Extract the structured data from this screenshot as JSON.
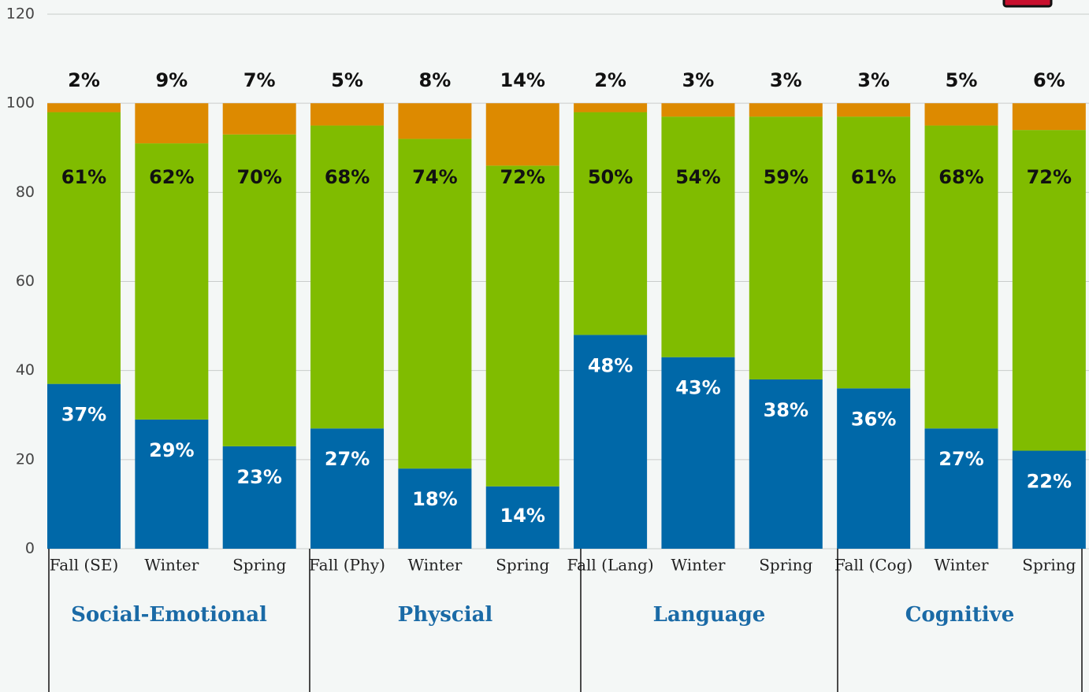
{
  "chart_data": {
    "type": "stacked_bar",
    "categories": [
      "Fall (SE)",
      "Winter",
      "Spring",
      "Fall (Phy)",
      "Winter",
      "Spring",
      "Fall (Lang)",
      "Winter",
      "Spring",
      "Fall (Cog)",
      "Winter",
      "Spring"
    ],
    "groups": [
      "Social-Emotional",
      "Physcial",
      "Language",
      "Cognitive"
    ],
    "series": [
      {
        "color": "#0068a8",
        "values": [
          37,
          29,
          23,
          27,
          18,
          14,
          48,
          43,
          38,
          36,
          27,
          22
        ],
        "value_labels": [
          "37%",
          "29%",
          "23%",
          "27%",
          "18%",
          "14%",
          "48%",
          "43%",
          "38%",
          "36%",
          "27%",
          "22%"
        ]
      },
      {
        "color": "#80bc00",
        "values": [
          61,
          62,
          70,
          68,
          74,
          72,
          50,
          54,
          59,
          61,
          68,
          72
        ],
        "value_labels": [
          "61%",
          "62%",
          "70%",
          "68%",
          "74%",
          "72%",
          "50%",
          "54%",
          "59%",
          "61%",
          "68%",
          "72%"
        ]
      },
      {
        "color": "#dd8a00",
        "values": [
          2,
          9,
          7,
          5,
          8,
          14,
          2,
          3,
          3,
          3,
          5,
          6
        ],
        "value_labels": [
          "2%",
          "9%",
          "7%",
          "5%",
          "8%",
          "14%",
          "2%",
          "3%",
          "3%",
          "3%",
          "5%",
          "6%"
        ]
      }
    ],
    "ylim": [
      0,
      120
    ],
    "yticks": [
      0,
      20,
      40,
      60,
      80,
      100,
      120
    ],
    "grid": true
  }
}
